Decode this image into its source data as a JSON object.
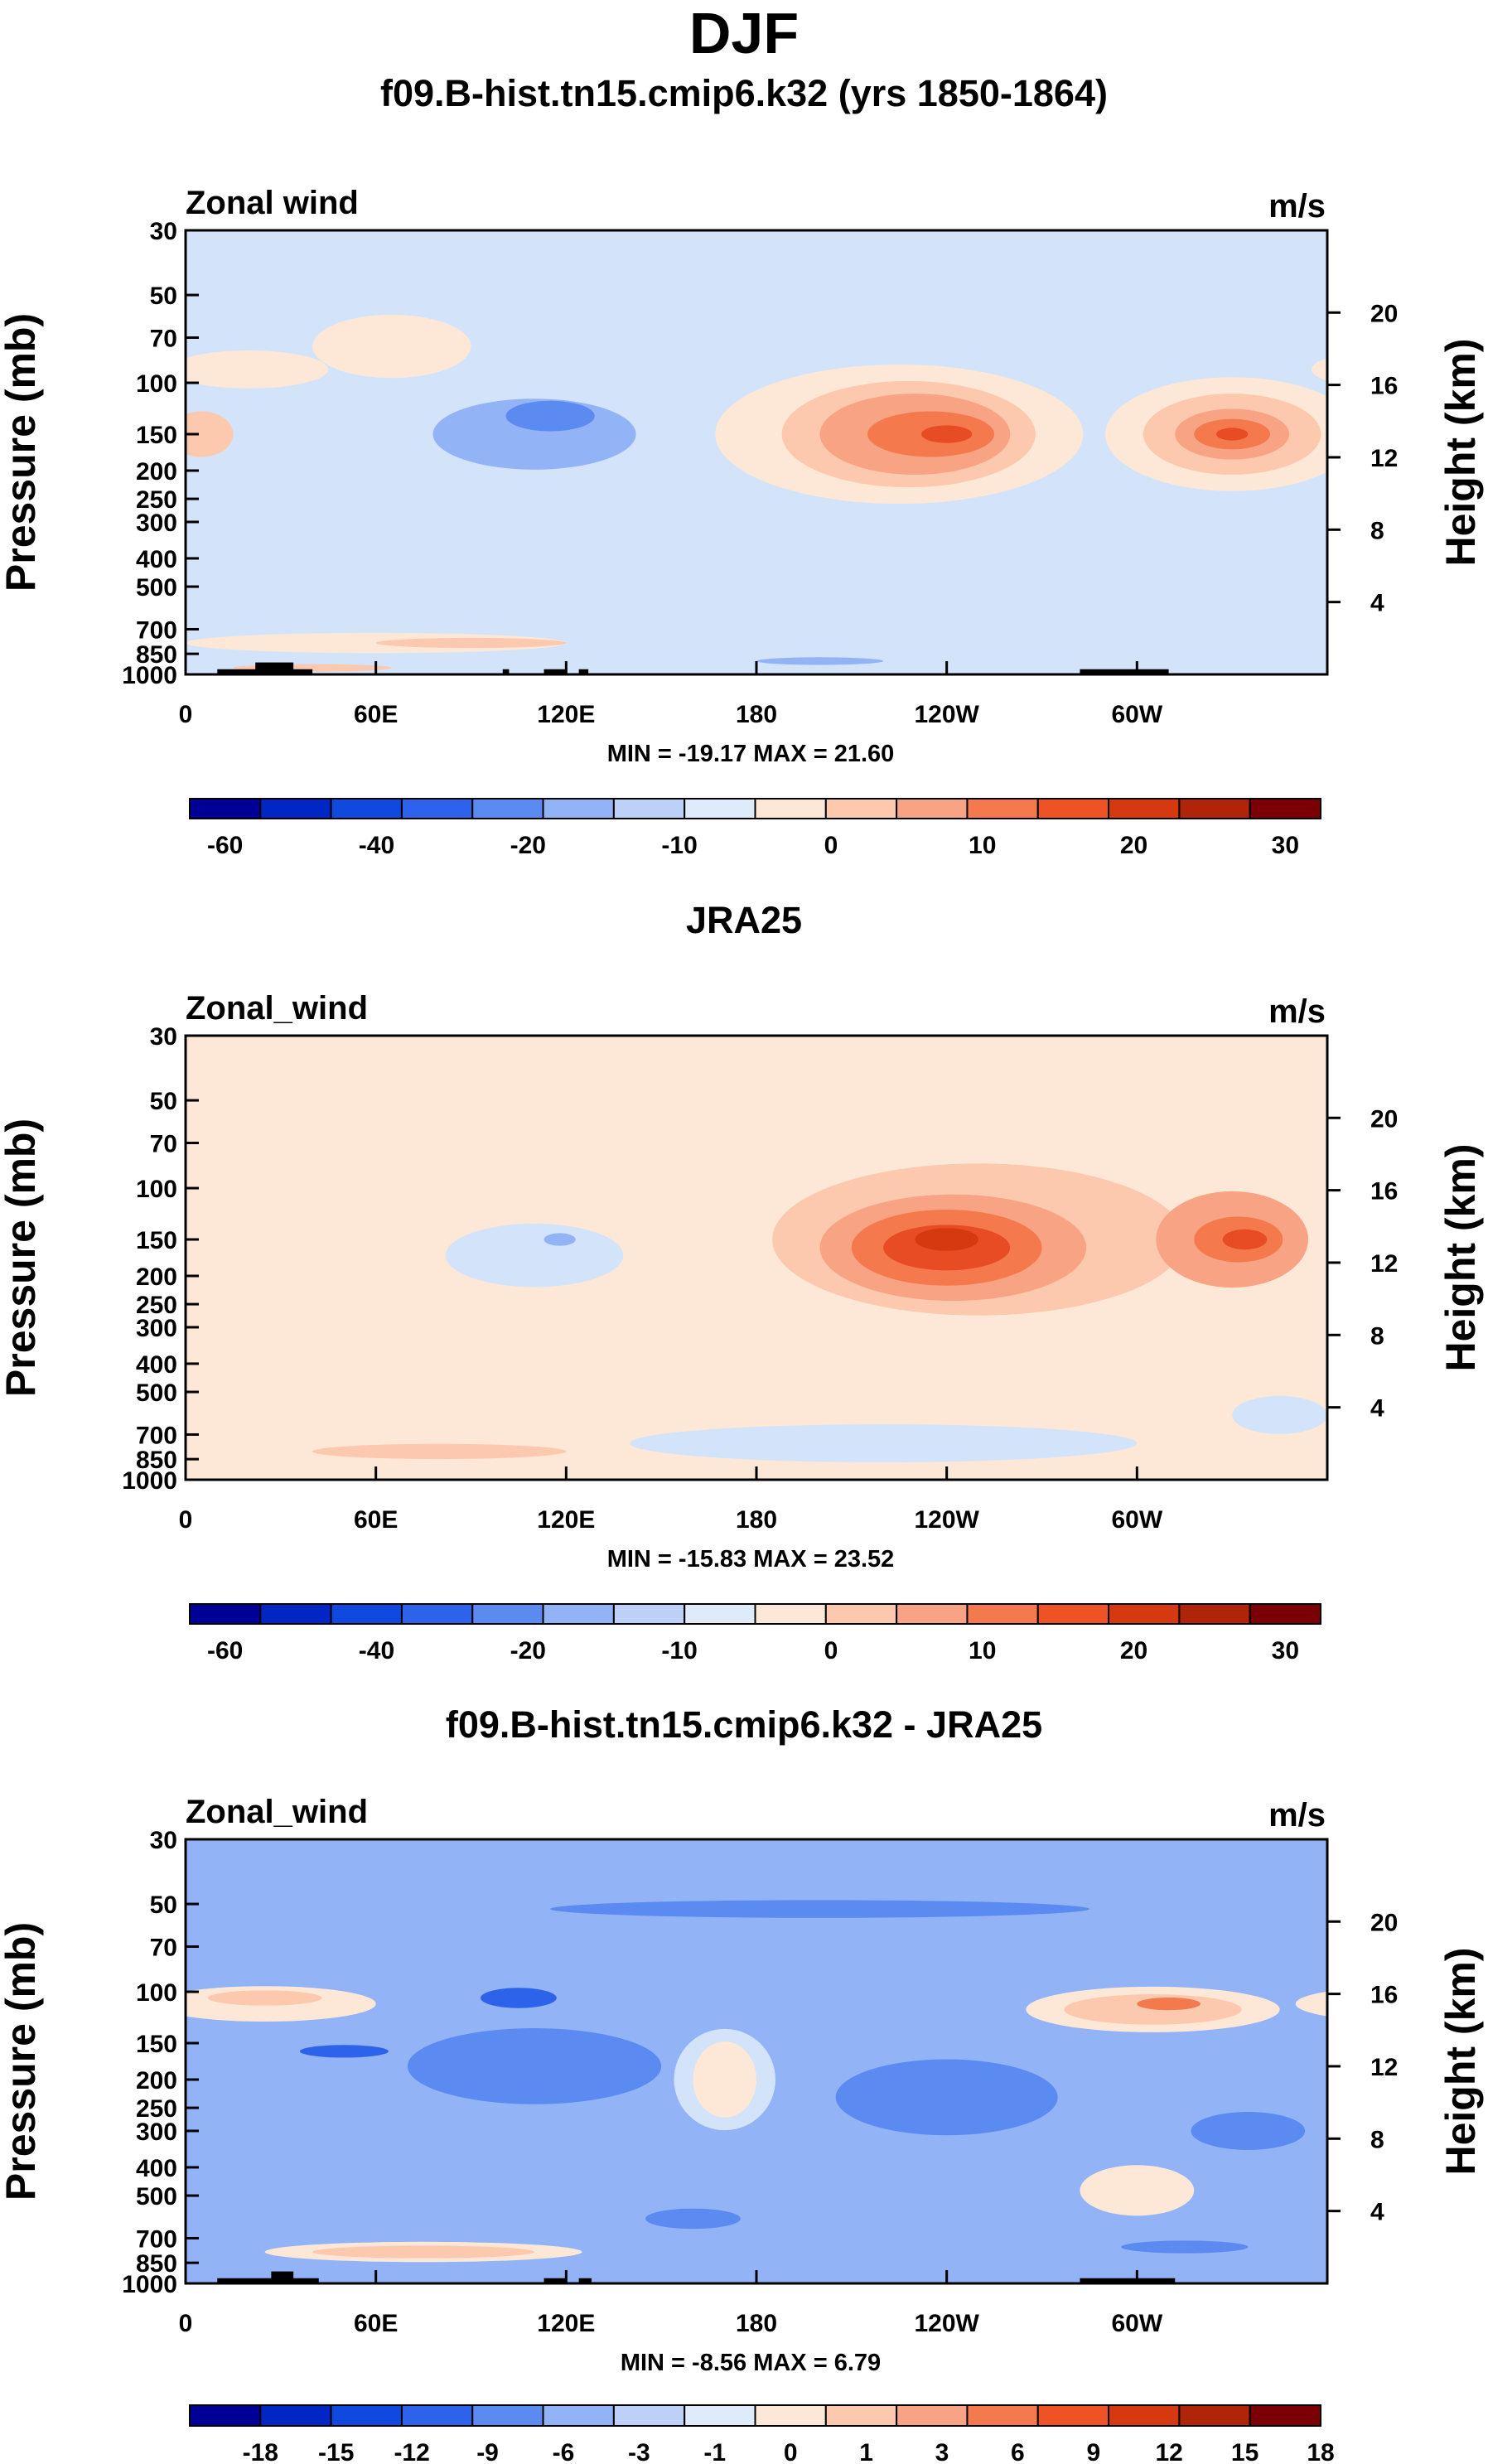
{
  "figure_title": "DJF",
  "chart_data": [
    {
      "type": "heatmap",
      "title": "f09.B-hist.tn15.cmip6.k32 (yrs 1850-1864)",
      "panel_label": "Zonal wind",
      "units": "m/s",
      "ylabel": "Pressure (mb)",
      "ylabel_right": "Height (km)",
      "xlabel": "",
      "x_ticks": [
        {
          "lon": 0,
          "label": "0"
        },
        {
          "lon": 60,
          "label": "60E"
        },
        {
          "lon": 120,
          "label": "120E"
        },
        {
          "lon": 180,
          "label": "180"
        },
        {
          "lon": 240,
          "label": "120W"
        },
        {
          "lon": 300,
          "label": "60W"
        }
      ],
      "xlim": [
        0,
        360
      ],
      "y_ticks": [
        {
          "p": 30,
          "label": "30"
        },
        {
          "p": 50,
          "label": "50"
        },
        {
          "p": 70,
          "label": "70"
        },
        {
          "p": 100,
          "label": "100"
        },
        {
          "p": 150,
          "label": "150"
        },
        {
          "p": 200,
          "label": "200"
        },
        {
          "p": 250,
          "label": "250"
        },
        {
          "p": 300,
          "label": "300"
        },
        {
          "p": 400,
          "label": "400"
        },
        {
          "p": 500,
          "label": "500"
        },
        {
          "p": 700,
          "label": "700"
        },
        {
          "p": 850,
          "label": "850"
        },
        {
          "p": 1000,
          "label": "1000"
        }
      ],
      "ylim": [
        1000,
        30
      ],
      "height_ticks": [
        {
          "km": 4,
          "label": "4"
        },
        {
          "km": 8,
          "label": "8"
        },
        {
          "km": 12,
          "label": "12"
        },
        {
          "km": 16,
          "label": "16"
        },
        {
          "km": 20,
          "label": "20"
        }
      ],
      "min_max": "MIN = -19.17  MAX =  21.60",
      "colorbar_labels": [
        "-60",
        "-40",
        "-20",
        "-10",
        "0",
        "10",
        "20",
        "30"
      ],
      "background_level": -1,
      "features": [
        {
          "lon": 65,
          "p": 75,
          "slon": 25,
          "slog": 0.25,
          "level": 0
        },
        {
          "lon": 20,
          "p": 90,
          "slon": 25,
          "slog": 0.15,
          "level": 0
        },
        {
          "lon": 5,
          "p": 150,
          "slon": 10,
          "slog": 0.18,
          "level": 1
        },
        {
          "lon": 110,
          "p": 150,
          "slon": 32,
          "slog": 0.28,
          "level": -2
        },
        {
          "lon": 115,
          "p": 130,
          "slon": 14,
          "slog": 0.12,
          "level": -3
        },
        {
          "lon": 225,
          "p": 150,
          "slon": 58,
          "slog": 0.55,
          "level": 0
        },
        {
          "lon": 228,
          "p": 150,
          "slon": 40,
          "slog": 0.42,
          "level": 1
        },
        {
          "lon": 230,
          "p": 150,
          "slon": 30,
          "slog": 0.32,
          "level": 2
        },
        {
          "lon": 235,
          "p": 150,
          "slon": 20,
          "slog": 0.18,
          "level": 3
        },
        {
          "lon": 240,
          "p": 150,
          "slon": 8,
          "slog": 0.07,
          "level": 4
        },
        {
          "lon": 330,
          "p": 150,
          "slon": 40,
          "slog": 0.45,
          "level": 0
        },
        {
          "lon": 330,
          "p": 150,
          "slon": 28,
          "slog": 0.32,
          "level": 1
        },
        {
          "lon": 330,
          "p": 150,
          "slon": 18,
          "slog": 0.2,
          "level": 2
        },
        {
          "lon": 330,
          "p": 150,
          "slon": 12,
          "slog": 0.12,
          "level": 3
        },
        {
          "lon": 330,
          "p": 150,
          "slon": 5,
          "slog": 0.05,
          "level": 4
        },
        {
          "lon": 60,
          "p": 780,
          "slon": 60,
          "slog": 0.08,
          "level": 0
        },
        {
          "lon": 90,
          "p": 780,
          "slon": 30,
          "slog": 0.04,
          "level": 1
        },
        {
          "lon": 40,
          "p": 950,
          "slon": 25,
          "slog": 0.03,
          "level": 1
        },
        {
          "lon": 200,
          "p": 900,
          "slon": 20,
          "slog": 0.03,
          "level": -2
        }
      ],
      "topography": [
        {
          "lon0": 10,
          "lon1": 40,
          "p": 960
        },
        {
          "lon0": 22,
          "lon1": 34,
          "p": 910
        },
        {
          "lon0": 100,
          "lon1": 102,
          "p": 960
        },
        {
          "lon0": 113,
          "lon1": 120,
          "p": 960
        },
        {
          "lon0": 124,
          "lon1": 127,
          "p": 960
        },
        {
          "lon0": 282,
          "lon1": 310,
          "p": 960
        }
      ]
    },
    {
      "type": "heatmap",
      "title": "JRA25",
      "panel_label": "Zonal_wind",
      "units": "m/s",
      "ylabel": "Pressure (mb)",
      "ylabel_right": "Height (km)",
      "xlabel": "",
      "x_ticks": [
        {
          "lon": 0,
          "label": "0"
        },
        {
          "lon": 60,
          "label": "60E"
        },
        {
          "lon": 120,
          "label": "120E"
        },
        {
          "lon": 180,
          "label": "180"
        },
        {
          "lon": 240,
          "label": "120W"
        },
        {
          "lon": 300,
          "label": "60W"
        }
      ],
      "xlim": [
        0,
        360
      ],
      "y_ticks": [
        {
          "p": 30,
          "label": "30"
        },
        {
          "p": 50,
          "label": "50"
        },
        {
          "p": 70,
          "label": "70"
        },
        {
          "p": 100,
          "label": "100"
        },
        {
          "p": 150,
          "label": "150"
        },
        {
          "p": 200,
          "label": "200"
        },
        {
          "p": 250,
          "label": "250"
        },
        {
          "p": 300,
          "label": "300"
        },
        {
          "p": 400,
          "label": "400"
        },
        {
          "p": 500,
          "label": "500"
        },
        {
          "p": 700,
          "label": "700"
        },
        {
          "p": 850,
          "label": "850"
        },
        {
          "p": 1000,
          "label": "1000"
        }
      ],
      "ylim": [
        1000,
        30
      ],
      "height_ticks": [
        {
          "km": 4,
          "label": "4"
        },
        {
          "km": 8,
          "label": "8"
        },
        {
          "km": 12,
          "label": "12"
        },
        {
          "km": 16,
          "label": "16"
        },
        {
          "km": 20,
          "label": "20"
        }
      ],
      "min_max": "MIN = -15.83  MAX =  23.52",
      "colorbar_labels": [
        "-60",
        "-40",
        "-20",
        "-10",
        "0",
        "10",
        "20",
        "30"
      ],
      "background_level": 0,
      "features": [
        {
          "lon": 110,
          "p": 170,
          "slon": 28,
          "slog": 0.25,
          "level": -1
        },
        {
          "lon": 118,
          "p": 150,
          "slon": 5,
          "slog": 0.05,
          "level": -2
        },
        {
          "lon": 250,
          "p": 150,
          "slon": 65,
          "slog": 0.6,
          "level": 1
        },
        {
          "lon": 242,
          "p": 160,
          "slon": 42,
          "slog": 0.42,
          "level": 2
        },
        {
          "lon": 240,
          "p": 160,
          "slon": 30,
          "slog": 0.3,
          "level": 3
        },
        {
          "lon": 240,
          "p": 160,
          "slon": 20,
          "slog": 0.18,
          "level": 4
        },
        {
          "lon": 240,
          "p": 150,
          "slon": 10,
          "slog": 0.09,
          "level": 5
        },
        {
          "lon": 330,
          "p": 150,
          "slon": 24,
          "slog": 0.38,
          "level": 2
        },
        {
          "lon": 332,
          "p": 150,
          "slon": 14,
          "slog": 0.18,
          "level": 3
        },
        {
          "lon": 334,
          "p": 150,
          "slon": 7,
          "slog": 0.08,
          "level": 4
        },
        {
          "lon": 220,
          "p": 750,
          "slon": 80,
          "slog": 0.15,
          "level": -1
        },
        {
          "lon": 345,
          "p": 600,
          "slon": 15,
          "slog": 0.15,
          "level": -1
        },
        {
          "lon": 80,
          "p": 800,
          "slon": 40,
          "slog": 0.06,
          "level": 1
        }
      ],
      "topography": []
    },
    {
      "type": "heatmap",
      "title": "f09.B-hist.tn15.cmip6.k32 - JRA25",
      "panel_label": "Zonal_wind",
      "units": "m/s",
      "ylabel": "Pressure (mb)",
      "ylabel_right": "Height (km)",
      "xlabel": "",
      "x_ticks": [
        {
          "lon": 0,
          "label": "0"
        },
        {
          "lon": 60,
          "label": "60E"
        },
        {
          "lon": 120,
          "label": "120E"
        },
        {
          "lon": 180,
          "label": "180"
        },
        {
          "lon": 240,
          "label": "120W"
        },
        {
          "lon": 300,
          "label": "60W"
        }
      ],
      "xlim": [
        0,
        360
      ],
      "y_ticks": [
        {
          "p": 30,
          "label": "30"
        },
        {
          "p": 50,
          "label": "50"
        },
        {
          "p": 70,
          "label": "70"
        },
        {
          "p": 100,
          "label": "100"
        },
        {
          "p": 150,
          "label": "150"
        },
        {
          "p": 200,
          "label": "200"
        },
        {
          "p": 250,
          "label": "250"
        },
        {
          "p": 300,
          "label": "300"
        },
        {
          "p": 400,
          "label": "400"
        },
        {
          "p": 500,
          "label": "500"
        },
        {
          "p": 700,
          "label": "700"
        },
        {
          "p": 850,
          "label": "850"
        },
        {
          "p": 1000,
          "label": "1000"
        }
      ],
      "ylim": [
        1000,
        30
      ],
      "height_ticks": [
        {
          "km": 4,
          "label": "4"
        },
        {
          "km": 8,
          "label": "8"
        },
        {
          "km": 12,
          "label": "12"
        },
        {
          "km": 16,
          "label": "16"
        },
        {
          "km": 20,
          "label": "20"
        }
      ],
      "min_max": "MIN = -8.56  MAX =  6.79",
      "colorbar_labels": [
        "-18",
        "-15",
        "-12",
        "-9",
        "-6",
        "-3",
        "-1",
        "0",
        "1",
        "3",
        "6",
        "9",
        "12",
        "15",
        "18"
      ],
      "background_level": -2,
      "features": [
        {
          "lon": 200,
          "p": 52,
          "slon": 85,
          "slog": 0.07,
          "level": -3
        },
        {
          "lon": 110,
          "p": 180,
          "slon": 40,
          "slog": 0.3,
          "level": -3
        },
        {
          "lon": 50,
          "p": 160,
          "slon": 14,
          "slog": 0.05,
          "level": -4
        },
        {
          "lon": 105,
          "p": 105,
          "slon": 12,
          "slog": 0.08,
          "level": -4
        },
        {
          "lon": 25,
          "p": 110,
          "slon": 35,
          "slog": 0.14,
          "level": 0
        },
        {
          "lon": 25,
          "p": 105,
          "slon": 18,
          "slog": 0.06,
          "level": 1
        },
        {
          "lon": 170,
          "p": 200,
          "slon": 16,
          "slog": 0.4,
          "level": -1
        },
        {
          "lon": 170,
          "p": 200,
          "slon": 10,
          "slog": 0.3,
          "level": 0
        },
        {
          "lon": 240,
          "p": 230,
          "slon": 35,
          "slog": 0.3,
          "level": -3
        },
        {
          "lon": 305,
          "p": 115,
          "slon": 40,
          "slog": 0.18,
          "level": 0
        },
        {
          "lon": 305,
          "p": 115,
          "slon": 28,
          "slog": 0.12,
          "level": 1
        },
        {
          "lon": 310,
          "p": 110,
          "slon": 10,
          "slog": 0.05,
          "level": 2
        },
        {
          "lon": 75,
          "p": 780,
          "slon": 50,
          "slog": 0.08,
          "level": 0
        },
        {
          "lon": 75,
          "p": 780,
          "slon": 35,
          "slog": 0.05,
          "level": 1
        },
        {
          "lon": 300,
          "p": 480,
          "slon": 18,
          "slog": 0.2,
          "level": 0
        },
        {
          "lon": 335,
          "p": 300,
          "slon": 18,
          "slog": 0.15,
          "level": -3
        },
        {
          "lon": 315,
          "p": 750,
          "slon": 20,
          "slog": 0.05,
          "level": -3
        },
        {
          "lon": 160,
          "p": 600,
          "slon": 15,
          "slog": 0.08,
          "level": -3
        }
      ],
      "topography": [
        {
          "lon0": 10,
          "lon1": 42,
          "p": 960
        },
        {
          "lon0": 27,
          "lon1": 34,
          "p": 910
        },
        {
          "lon0": 113,
          "lon1": 120,
          "p": 960
        },
        {
          "lon0": 124,
          "lon1": 128,
          "p": 960
        },
        {
          "lon0": 282,
          "lon1": 312,
          "p": 960
        }
      ]
    }
  ],
  "colors": {
    "wind_levels": {
      "-4": "#2d63eb",
      "-3": "#5b8bf0",
      "-2": "#92b3f5",
      "-1": "#d2e3fa",
      "0": "#fde8d8",
      "1": "#fcc9ae",
      "2": "#f8a384",
      "3": "#f47a4e",
      "4": "#e84c25",
      "5": "#d6380f"
    },
    "diff_levels": {
      "-4": "#2d63eb",
      "-3": "#5b8bf0",
      "-2": "#92b3f5",
      "-1": "#d2e3fa",
      "0": "#fde8d8",
      "1": "#fcc9ae",
      "2": "#f47a4e"
    },
    "colorbar_wind": [
      "#000096",
      "#0026c6",
      "#0f49e0",
      "#2d63eb",
      "#5b8bf0",
      "#92b3f5",
      "#bcd0f8",
      "#ddebfb",
      "#fde8d8",
      "#fcc9ae",
      "#f8a384",
      "#f47a4e",
      "#ef5225",
      "#d6380f",
      "#b0240a",
      "#7b0006"
    ],
    "colorbar_diff": [
      "#000096",
      "#0026c6",
      "#0f49e0",
      "#2d63eb",
      "#5b8bf0",
      "#92b3f5",
      "#bcd0f8",
      "#ddebfb",
      "#fde8d8",
      "#fcc9ae",
      "#f8a384",
      "#f47a4e",
      "#ef5225",
      "#d6380f",
      "#b0240a",
      "#7b0006"
    ],
    "topography": "#000000"
  }
}
